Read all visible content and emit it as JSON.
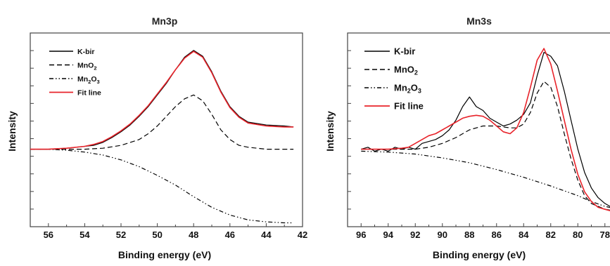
{
  "chart_data": [
    {
      "type": "line",
      "title": "Mn3p",
      "xlabel": "Binding energy (eV)",
      "ylabel": "Intensity",
      "xlim": [
        57,
        42
      ],
      "xticks": [
        56,
        54,
        52,
        50,
        48,
        46,
        44,
        42
      ],
      "ylim": [
        0,
        100
      ],
      "y_ticklabels": false,
      "grid": false,
      "legend_position": "top-left",
      "series": [
        {
          "name": "K-bir",
          "color": "#000000",
          "style": "solid",
          "x": [
            57,
            56,
            55,
            54,
            53.5,
            53,
            52.5,
            52,
            51.5,
            51,
            50.5,
            50,
            49.5,
            49,
            48.5,
            48,
            47.5,
            47,
            46.5,
            46,
            45.5,
            45,
            44,
            43,
            42.5
          ],
          "y": [
            40,
            40,
            40.5,
            41.5,
            42,
            43.5,
            46,
            49,
            52.5,
            57,
            62,
            68,
            74,
            81,
            87.5,
            91,
            88,
            80,
            70,
            62,
            57,
            54,
            52.5,
            52,
            51.5
          ]
        },
        {
          "name": "MnO2",
          "label_main": "MnO",
          "label_sub": "2",
          "color": "#000000",
          "style": "dashed",
          "x": [
            57,
            55,
            54,
            53,
            52,
            51,
            50.5,
            50,
            49.5,
            49,
            48.5,
            48,
            47.5,
            47,
            46.5,
            46,
            45.5,
            45,
            44,
            42.5
          ],
          "y": [
            40,
            40,
            40,
            40.5,
            42,
            45,
            48,
            52,
            57,
            62,
            66,
            68,
            65,
            58,
            50,
            45,
            42,
            41,
            40,
            40
          ]
        },
        {
          "name": "Mn2O3",
          "label_main": "Mn",
          "label_sub1": "2",
          "label_mid": "O",
          "label_sub2": "3",
          "color": "#000000",
          "style": "dashdotdot",
          "x": [
            57,
            56,
            55,
            54,
            53,
            52,
            51,
            50,
            49,
            48,
            47,
            46,
            45,
            44,
            43,
            42.5
          ],
          "y": [
            40,
            40,
            39.5,
            38.5,
            37,
            34.5,
            31,
            26.5,
            21.5,
            15.5,
            10,
            6,
            3.5,
            2.5,
            2,
            2
          ]
        },
        {
          "name": "Fit line",
          "color": "#e8232a",
          "style": "solid",
          "x": [
            57,
            56,
            55,
            54,
            53.5,
            53,
            52.5,
            52,
            51.5,
            51,
            50.5,
            50,
            49.5,
            49,
            48.5,
            48,
            47.5,
            47,
            46.5,
            46,
            45.5,
            45,
            44,
            43,
            42.5
          ],
          "y": [
            40,
            40,
            40.5,
            41.5,
            42.5,
            44,
            46.5,
            49.5,
            53,
            57.5,
            62.5,
            68.5,
            74.5,
            81,
            87,
            90.5,
            87.5,
            79.5,
            69.5,
            61.5,
            56.5,
            53.5,
            52,
            51.5,
            51.5
          ]
        }
      ]
    },
    {
      "type": "line",
      "title": "Mn3s",
      "xlabel": "Binding energy (eV)",
      "ylabel": "Intensity",
      "xlim": [
        97,
        77
      ],
      "xticks": [
        96,
        94,
        92,
        90,
        88,
        86,
        84,
        82,
        80,
        78
      ],
      "ylim": [
        0,
        100
      ],
      "y_ticklabels": false,
      "grid": false,
      "legend_position": "top-left",
      "series": [
        {
          "name": "K-bir",
          "color": "#000000",
          "style": "solid",
          "x": [
            96,
            95.5,
            95,
            94.5,
            94,
            93.5,
            93,
            92.5,
            92,
            91.5,
            91,
            90.5,
            90,
            89.5,
            89,
            88.5,
            88,
            87.5,
            87,
            86.5,
            86,
            85.5,
            85,
            84.5,
            84,
            83.5,
            83,
            82.5,
            82,
            81.5,
            81,
            80.5,
            80,
            79.5,
            79,
            78.5,
            78,
            77.5,
            77
          ],
          "y": [
            40,
            41,
            39,
            40,
            39,
            41,
            40,
            41,
            40,
            43,
            44,
            45,
            47,
            50,
            55,
            62,
            67,
            62,
            60,
            56,
            54,
            52,
            53,
            55,
            58,
            64,
            78,
            90,
            88,
            83,
            70,
            55,
            40,
            28,
            20,
            15,
            12,
            10,
            9
          ]
        },
        {
          "name": "MnO2",
          "label_main": "MnO",
          "label_sub": "2",
          "color": "#000000",
          "style": "dashed",
          "x": [
            96,
            94,
            92,
            91,
            90,
            89,
            88,
            87,
            86,
            85,
            84.5,
            84,
            83.5,
            83,
            82.5,
            82,
            81.5,
            81,
            80.5,
            80,
            79.5,
            79,
            78,
            77
          ],
          "y": [
            40,
            40,
            40,
            41,
            43,
            46,
            50,
            52,
            52,
            51,
            51,
            53,
            59,
            69,
            75,
            72,
            62,
            48,
            35,
            24,
            16,
            12,
            9,
            8
          ]
        },
        {
          "name": "Mn2O3",
          "label_main": "Mn",
          "label_sub1": "2",
          "label_mid": "O",
          "label_sub2": "3",
          "color": "#000000",
          "style": "dashdotdot",
          "x": [
            96,
            94,
            92,
            90,
            88,
            86,
            84,
            82,
            80,
            79,
            78,
            77
          ],
          "y": [
            39,
            38.5,
            37.5,
            35.5,
            33,
            29.5,
            25.5,
            21,
            16,
            13,
            10.5,
            9
          ]
        },
        {
          "name": "Fit line",
          "color": "#e8232a",
          "style": "solid",
          "x": [
            96,
            95,
            94,
            93,
            92.5,
            92,
            91.5,
            91,
            90.5,
            90,
            89.5,
            89,
            88.5,
            88,
            87.5,
            87,
            86.5,
            86,
            85.5,
            85,
            84.5,
            84,
            83.5,
            83,
            82.5,
            82,
            81.5,
            81,
            80.5,
            80,
            79.5,
            79,
            78.5,
            78,
            77.5,
            77
          ],
          "y": [
            40,
            40,
            40,
            40.5,
            41,
            43,
            45,
            47,
            48,
            50,
            52,
            54,
            56,
            57,
            57.5,
            57,
            55,
            52,
            49,
            48,
            51,
            59,
            72,
            86,
            92,
            84,
            70,
            55,
            40,
            27,
            18,
            13,
            10,
            9,
            8,
            8
          ]
        }
      ]
    }
  ]
}
